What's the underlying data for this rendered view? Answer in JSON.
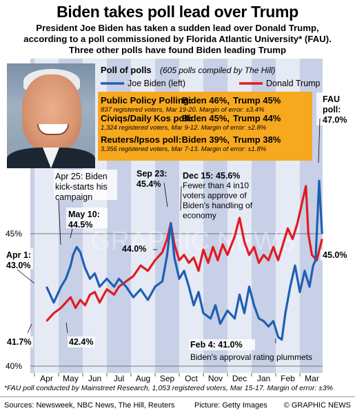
{
  "headline": "Biden takes poll lead over Trump",
  "subhead": [
    "President Joe Biden has taken a sudden lead over Donald Trump,",
    "according to a poll commissioned by Florida Atlantic University* (FAU).",
    "Three other polls have found Biden leading Trump"
  ],
  "photo_alt": "Joe Biden",
  "legend": {
    "title": "Poll of polls",
    "subtitle": "(605 polls compiled by The Hill)",
    "biden": "Joe Biden (left)",
    "trump": "Donald Trump"
  },
  "polls_box": [
    {
      "name": "Public Policy Polling:",
      "biden": "Biden 46%,",
      "trump": "Trump 45%",
      "detail": "837 registered voters, Mar 19-20. Margin of error: ±3.4%"
    },
    {
      "name": "Civiqs/Daily Kos poll:",
      "biden": "Biden 45%,",
      "trump": "Trump 44%",
      "detail": "1,324 registered voters, Mar 9-12. Margin of error: ±2.8%"
    },
    {
      "name": "Reuters/Ipsos poll:",
      "biden": "Biden 39%,",
      "trump": "Trump 38%",
      "detail": "3,356 registered voters, Mar 7-13. Margin of error: ±1.8%"
    }
  ],
  "annotations": [
    {
      "lines": [
        "Apr 1:",
        "43.0%"
      ],
      "bold": true
    },
    {
      "lines": [
        "Apr 25: Biden",
        "kick-starts his",
        "campaign"
      ],
      "bold": false
    },
    {
      "lines": [
        "May 10:",
        "44.5%"
      ],
      "bold": true
    },
    {
      "lines": [
        "Sep 23:",
        "45.4%"
      ],
      "bold": true
    },
    {
      "lines": [
        "Dec 15: 45.6%"
      ],
      "bold": true
    },
    {
      "lines": [
        "Fewer than 4 in10",
        "voters approve of",
        "Biden's handling of",
        "economy"
      ],
      "bold": false
    },
    {
      "lines": [
        "FAU",
        "poll:",
        "47.0%"
      ],
      "bold": true
    },
    {
      "lines": [
        "44.0%"
      ],
      "bold": true
    },
    {
      "lines": [
        "41.7%"
      ],
      "bold": true
    },
    {
      "lines": [
        "42.4%"
      ],
      "bold": true
    },
    {
      "lines": [
        "45.0%"
      ],
      "bold": true
    },
    {
      "lines": [
        "Feb 4: 41.0%"
      ],
      "bold": true
    },
    {
      "lines": [
        "Biden's approval rating plummets"
      ],
      "bold": false
    }
  ],
  "chart_data": {
    "type": "line",
    "title": "Poll of polls",
    "ylim": [
      40,
      47.5
    ],
    "y_ticks": [
      40,
      45
    ],
    "y_tick_labels": [
      "40%",
      "45%"
    ],
    "months": [
      "Apr",
      "May",
      "Jun",
      "Jul",
      "Aug",
      "Sep",
      "Oct",
      "Nov",
      "Dec",
      "Jan",
      "Feb",
      "Mar"
    ],
    "series": [
      {
        "name": "Joe Biden (left)",
        "color": "#1f5fb4",
        "points": [
          [
            0.0,
            43.0
          ],
          [
            0.3,
            42.4
          ],
          [
            0.6,
            43.0
          ],
          [
            0.8,
            43.3
          ],
          [
            1.0,
            43.8
          ],
          [
            1.1,
            44.2
          ],
          [
            1.25,
            44.5
          ],
          [
            1.4,
            44.3
          ],
          [
            1.6,
            43.7
          ],
          [
            1.8,
            43.3
          ],
          [
            2.0,
            43.5
          ],
          [
            2.2,
            43.0
          ],
          [
            2.5,
            43.3
          ],
          [
            2.8,
            43.0
          ],
          [
            3.0,
            43.3
          ],
          [
            3.3,
            43.0
          ],
          [
            3.6,
            42.6
          ],
          [
            3.9,
            42.9
          ],
          [
            4.2,
            42.5
          ],
          [
            4.5,
            43.0
          ],
          [
            4.8,
            43.2
          ],
          [
            5.0,
            44.2
          ],
          [
            5.15,
            45.4
          ],
          [
            5.3,
            44.1
          ],
          [
            5.5,
            43.3
          ],
          [
            5.7,
            43.6
          ],
          [
            5.9,
            43.0
          ],
          [
            6.1,
            42.3
          ],
          [
            6.3,
            42.8
          ],
          [
            6.5,
            42.0
          ],
          [
            6.8,
            41.8
          ],
          [
            7.0,
            42.3
          ],
          [
            7.2,
            41.6
          ],
          [
            7.5,
            42.1
          ],
          [
            7.8,
            41.8
          ],
          [
            8.0,
            42.7
          ],
          [
            8.2,
            42.0
          ],
          [
            8.4,
            43.0
          ],
          [
            8.6,
            42.3
          ],
          [
            8.8,
            41.8
          ],
          [
            9.0,
            41.7
          ],
          [
            9.2,
            41.5
          ],
          [
            9.4,
            41.7
          ],
          [
            9.6,
            41.1
          ],
          [
            9.75,
            41.0
          ],
          [
            9.9,
            42.0
          ],
          [
            10.1,
            43.0
          ],
          [
            10.3,
            43.8
          ],
          [
            10.5,
            42.8
          ],
          [
            10.7,
            43.6
          ],
          [
            10.9,
            43.0
          ],
          [
            11.05,
            43.8
          ],
          [
            11.15,
            44.0
          ],
          [
            11.3,
            47.0
          ],
          [
            11.42,
            45.0
          ]
        ]
      },
      {
        "name": "Donald Trump",
        "color": "#e11b22",
        "points": [
          [
            0.0,
            41.7
          ],
          [
            0.3,
            42.0
          ],
          [
            0.6,
            42.2
          ],
          [
            0.8,
            42.4
          ],
          [
            1.0,
            42.6
          ],
          [
            1.2,
            42.2
          ],
          [
            1.4,
            42.5
          ],
          [
            1.6,
            42.3
          ],
          [
            1.8,
            42.7
          ],
          [
            2.0,
            42.8
          ],
          [
            2.2,
            42.4
          ],
          [
            2.5,
            42.9
          ],
          [
            2.8,
            42.7
          ],
          [
            3.0,
            43.0
          ],
          [
            3.3,
            43.2
          ],
          [
            3.6,
            43.4
          ],
          [
            3.9,
            43.8
          ],
          [
            4.2,
            43.6
          ],
          [
            4.5,
            44.0
          ],
          [
            4.8,
            44.3
          ],
          [
            5.0,
            44.8
          ],
          [
            5.15,
            45.4
          ],
          [
            5.3,
            44.6
          ],
          [
            5.5,
            44.0
          ],
          [
            5.7,
            44.2
          ],
          [
            5.9,
            43.9
          ],
          [
            6.1,
            44.1
          ],
          [
            6.3,
            43.6
          ],
          [
            6.5,
            44.4
          ],
          [
            6.7,
            43.9
          ],
          [
            6.9,
            44.5
          ],
          [
            7.1,
            44.0
          ],
          [
            7.3,
            44.6
          ],
          [
            7.5,
            44.2
          ],
          [
            7.8,
            44.9
          ],
          [
            8.0,
            45.6
          ],
          [
            8.2,
            44.7
          ],
          [
            8.4,
            44.2
          ],
          [
            8.6,
            44.5
          ],
          [
            8.8,
            43.9
          ],
          [
            9.0,
            44.2
          ],
          [
            9.2,
            44.0
          ],
          [
            9.4,
            44.5
          ],
          [
            9.6,
            44.0
          ],
          [
            9.8,
            44.6
          ],
          [
            10.0,
            45.2
          ],
          [
            10.2,
            44.8
          ],
          [
            10.4,
            45.4
          ],
          [
            10.6,
            46.2
          ],
          [
            10.75,
            46.8
          ],
          [
            10.85,
            45.0
          ],
          [
            11.0,
            44.2
          ],
          [
            11.2,
            44.0
          ],
          [
            11.42,
            44.8
          ]
        ]
      }
    ]
  },
  "footnote": "*FAU poll conducted by Mainstreet Research, 1,053 registered voters, Mar 15-17. Margin of error: ±3%",
  "footer": {
    "sources": "Sources: Newsweek, NBC News, The Hill, Reuters",
    "picture": "Picture: Getty Images",
    "credit": "© GRAPHIC NEWS"
  },
  "watermark": "GRAPHIC NEWS"
}
